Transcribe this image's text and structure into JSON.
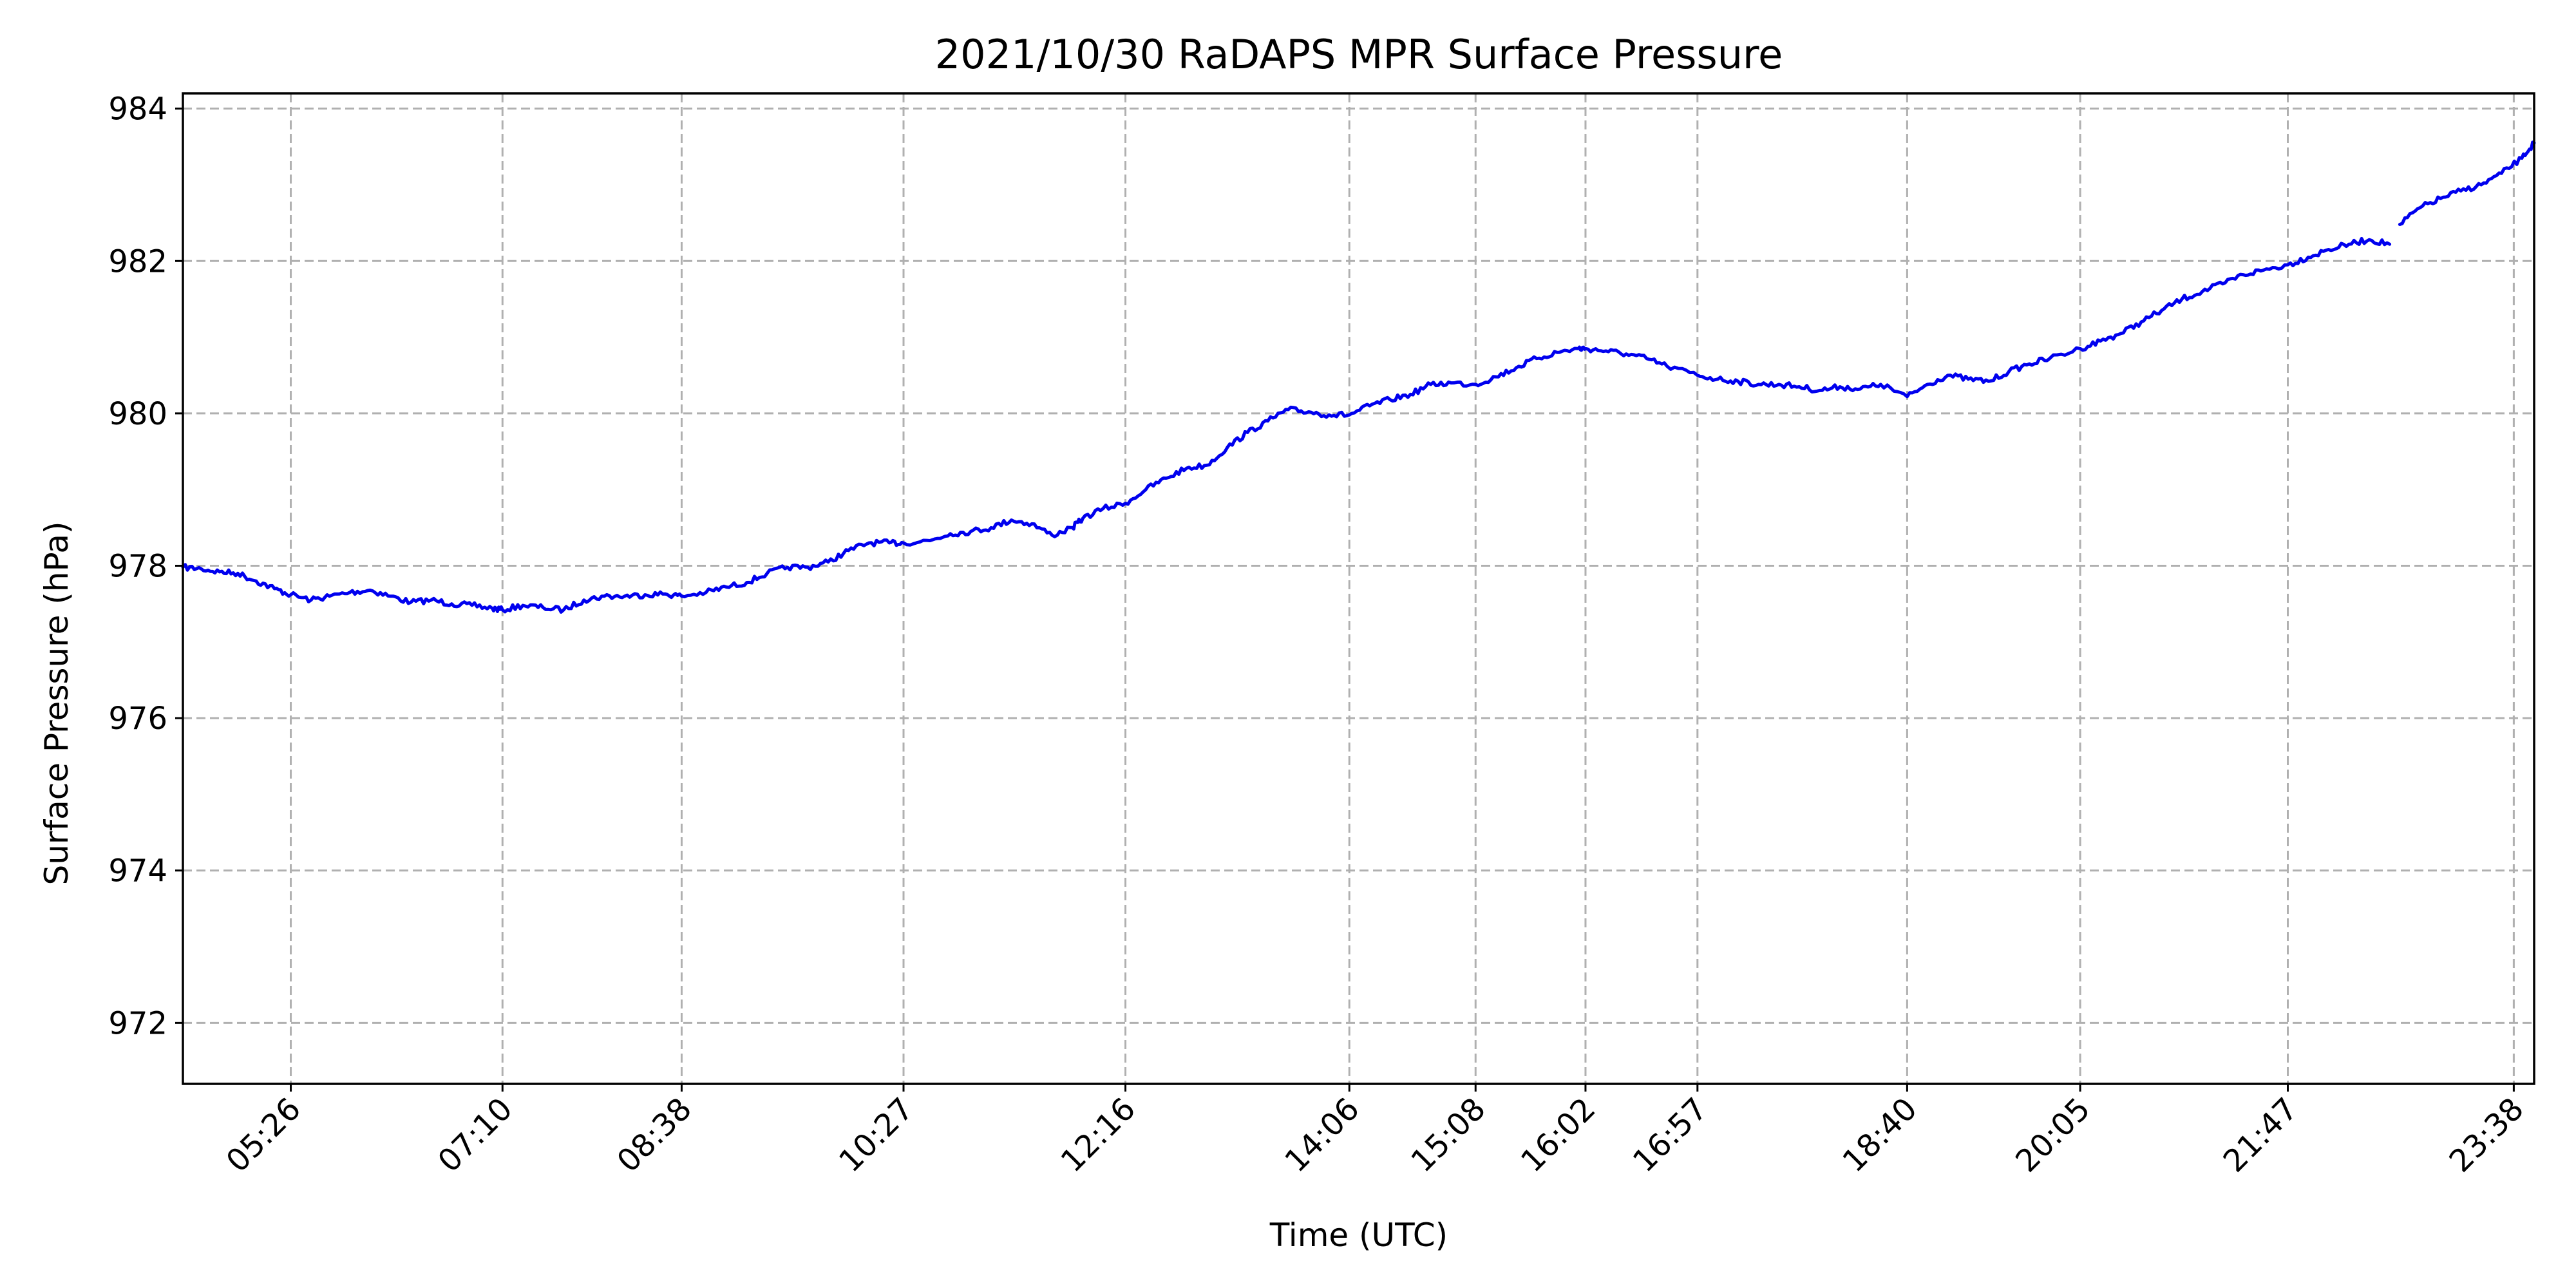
{
  "chart_data": {
    "type": "line",
    "title": "2021/10/30 RaDAPS MPR Surface Pressure",
    "xlabel": "Time (UTC)",
    "ylabel": "Surface Pressure (hPa)",
    "x_unit": "time of day (UTC)",
    "xlim": [
      "04:33",
      "23:48"
    ],
    "ylim": [
      971.2,
      984.2
    ],
    "x_ticks": [
      "05:26",
      "07:10",
      "08:38",
      "10:27",
      "12:16",
      "14:06",
      "15:08",
      "16:02",
      "16:57",
      "18:40",
      "20:05",
      "21:47",
      "23:38"
    ],
    "y_ticks": [
      972,
      974,
      976,
      978,
      980,
      982,
      984
    ],
    "grid": true,
    "line_color": "#0000ee",
    "grid_color": "#b0b0b0",
    "series": [
      {
        "x": [
          "04:33",
          "04:42",
          "04:51",
          "05:00",
          "05:09",
          "05:18",
          "05:26",
          "05:36",
          "05:45",
          "05:55",
          "06:05",
          "06:15",
          "06:25",
          "06:35",
          "06:45",
          "06:55",
          "07:05",
          "07:10",
          "07:20",
          "07:30",
          "07:40",
          "07:50",
          "08:00",
          "08:10",
          "08:20",
          "08:30",
          "08:38",
          "08:50",
          "09:00",
          "09:10",
          "09:20",
          "09:30",
          "09:40",
          "09:50",
          "10:00",
          "10:10",
          "10:20",
          "10:27",
          "10:40",
          "10:50",
          "11:00",
          "11:10",
          "11:20",
          "11:30",
          "11:40",
          "11:50",
          "11:55",
          "12:05",
          "12:16",
          "12:26",
          "12:36",
          "12:46",
          "12:56",
          "13:06",
          "13:16",
          "13:26",
          "13:36",
          "13:46",
          "13:56",
          "14:06",
          "14:16",
          "14:26",
          "14:36",
          "14:46",
          "14:56",
          "15:08",
          "15:18",
          "15:28",
          "15:38",
          "15:48",
          "15:58",
          "16:02",
          "16:12",
          "16:22",
          "16:32",
          "16:42",
          "16:57",
          "17:07",
          "17:17",
          "17:27",
          "17:37",
          "17:47",
          "17:57",
          "18:07",
          "18:17",
          "18:27",
          "18:40",
          "18:50",
          "19:00",
          "19:10",
          "19:20",
          "19:30",
          "19:40",
          "19:50",
          "20:05",
          "20:15",
          "20:25",
          "20:35",
          "20:45",
          "20:55",
          "21:05",
          "21:15",
          "21:25",
          "21:35",
          "21:47",
          "21:57",
          "22:07",
          "22:17",
          "22:27",
          "22:37"
        ],
        "y": [
          977.98,
          977.96,
          977.92,
          977.9,
          977.8,
          977.7,
          977.62,
          977.55,
          977.6,
          977.65,
          977.68,
          977.6,
          977.52,
          977.55,
          977.5,
          977.48,
          977.44,
          977.42,
          977.48,
          977.45,
          977.42,
          977.55,
          977.6,
          977.6,
          977.62,
          977.63,
          977.6,
          977.65,
          977.72,
          977.78,
          977.9,
          977.98,
          977.98,
          978.05,
          978.2,
          978.3,
          978.3,
          978.3,
          978.33,
          978.42,
          978.45,
          978.5,
          978.6,
          978.55,
          978.4,
          978.5,
          978.62,
          978.75,
          978.82,
          979.0,
          979.15,
          979.28,
          979.32,
          979.55,
          979.75,
          979.9,
          980.05,
          980.02,
          979.98,
          979.98,
          980.1,
          980.18,
          980.25,
          980.38,
          980.4,
          980.38,
          980.48,
          980.6,
          980.72,
          980.8,
          980.85,
          980.85,
          980.82,
          980.78,
          980.72,
          980.62,
          980.5,
          980.45,
          980.42,
          980.38,
          980.38,
          980.35,
          980.3,
          980.35,
          980.32,
          980.38,
          980.22,
          980.38,
          980.5,
          980.45,
          980.42,
          980.55,
          980.65,
          980.72,
          980.85,
          980.95,
          981.05,
          981.2,
          981.35,
          981.5,
          981.6,
          981.7,
          981.82,
          981.88,
          981.95,
          982.05,
          982.15,
          982.22,
          982.28,
          982.22
        ]
      },
      {
        "x": [
          "22:42",
          "22:52",
          "23:02",
          "23:12",
          "23:22",
          "23:32",
          "23:42",
          "23:48"
        ],
        "y": [
          982.48,
          982.7,
          982.82,
          982.92,
          983.0,
          983.15,
          983.35,
          983.55
        ]
      }
    ]
  }
}
